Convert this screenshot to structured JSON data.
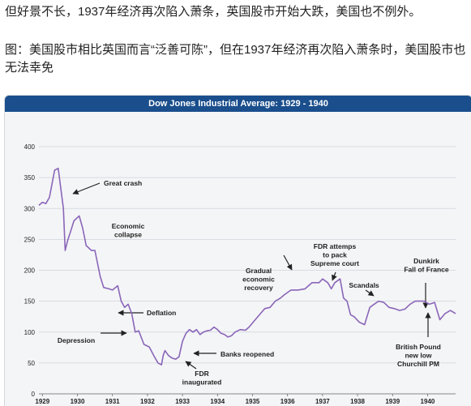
{
  "article": {
    "line1": "但好景不长，1937年经济再次陷入萧条，英国股市开始大跌，美国也不例外。",
    "line2": "图：美国股市相比英国而言“泛善可陈”，但在1937年经济再次陷入萧条时，美国股市也无法幸免"
  },
  "colors": {
    "line": "#8a66b8",
    "header": "#1a4e8c",
    "grid": "#cfd3da"
  },
  "chart_data": {
    "type": "line",
    "title": "Dow Jones Industrial Average: 1929 - 1940",
    "xlabel": "",
    "ylabel": "",
    "xlim": [
      1929,
      1940.9
    ],
    "ylim": [
      0,
      400
    ],
    "grid": true,
    "yticks": [
      0,
      50,
      100,
      150,
      200,
      250,
      300,
      350,
      400
    ],
    "xticks": [
      "1929",
      "1930",
      "1931",
      "1932",
      "1933",
      "1934",
      "1935",
      "1936",
      "1937",
      "1938",
      "1939",
      "1940"
    ],
    "series": [
      {
        "name": "",
        "x": [
          1929.0,
          1929.1,
          1929.2,
          1929.3,
          1929.45,
          1929.55,
          1929.7,
          1929.75,
          1929.82,
          1929.9,
          1930.0,
          1930.15,
          1930.25,
          1930.35,
          1930.5,
          1930.6,
          1930.75,
          1930.85,
          1931.0,
          1931.1,
          1931.25,
          1931.35,
          1931.45,
          1931.55,
          1931.65,
          1931.75,
          1931.85,
          1932.0,
          1932.15,
          1932.3,
          1932.4,
          1932.5,
          1932.55,
          1932.6,
          1932.7,
          1932.8,
          1932.9,
          1933.0,
          1933.1,
          1933.2,
          1933.3,
          1933.4,
          1933.5,
          1933.6,
          1933.7,
          1933.8,
          1933.9,
          1934.0,
          1934.1,
          1934.2,
          1934.3,
          1934.4,
          1934.5,
          1934.6,
          1934.75,
          1934.9,
          1935.0,
          1935.15,
          1935.3,
          1935.45,
          1935.6,
          1935.75,
          1935.9,
          1936.0,
          1936.2,
          1936.4,
          1936.6,
          1936.8,
          1937.0,
          1937.1,
          1937.25,
          1937.35,
          1937.45,
          1937.6,
          1937.7,
          1937.8,
          1937.9,
          1938.0,
          1938.15,
          1938.3,
          1938.45,
          1938.55,
          1938.7,
          1938.85,
          1939.0,
          1939.15,
          1939.3,
          1939.45,
          1939.6,
          1939.75,
          1939.9,
          1940.0,
          1940.15,
          1940.3,
          1940.45,
          1940.6,
          1940.75,
          1940.9
        ],
        "values": [
          305,
          310,
          308,
          318,
          362,
          365,
          300,
          232,
          248,
          262,
          280,
          288,
          268,
          240,
          232,
          232,
          190,
          172,
          170,
          168,
          175,
          150,
          140,
          145,
          130,
          100,
          102,
          80,
          76,
          60,
          50,
          47,
          62,
          70,
          62,
          58,
          56,
          60,
          85,
          98,
          104,
          100,
          104,
          96,
          100,
          102,
          103,
          108,
          104,
          98,
          96,
          92,
          94,
          100,
          104,
          103,
          108,
          118,
          128,
          138,
          140,
          150,
          155,
          160,
          168,
          168,
          170,
          180,
          180,
          186,
          180,
          170,
          180,
          186,
          155,
          150,
          128,
          125,
          116,
          112,
          140,
          144,
          150,
          148,
          140,
          138,
          135,
          137,
          145,
          150,
          150,
          150,
          145,
          148,
          120,
          130,
          135,
          130
        ]
      }
    ],
    "annotations": [
      {
        "lines": [
          "Great crash"
        ]
      },
      {
        "lines": [
          "Economic",
          "collapse"
        ]
      },
      {
        "lines": [
          "Deflation"
        ]
      },
      {
        "lines": [
          "Depression"
        ]
      },
      {
        "lines": [
          "Banks reopened"
        ]
      },
      {
        "lines": [
          "FDR",
          "inaugurated"
        ]
      },
      {
        "lines": [
          "Gradual",
          "economic",
          "recovery"
        ]
      },
      {
        "lines": [
          "FDR attemps",
          "to pack",
          "Supreme court"
        ]
      },
      {
        "lines": [
          "Scandals"
        ]
      },
      {
        "lines": [
          "Dunkirk",
          "Fall of France"
        ]
      },
      {
        "lines": [
          "British Pound",
          "new low",
          "Churchill PM"
        ]
      }
    ]
  }
}
